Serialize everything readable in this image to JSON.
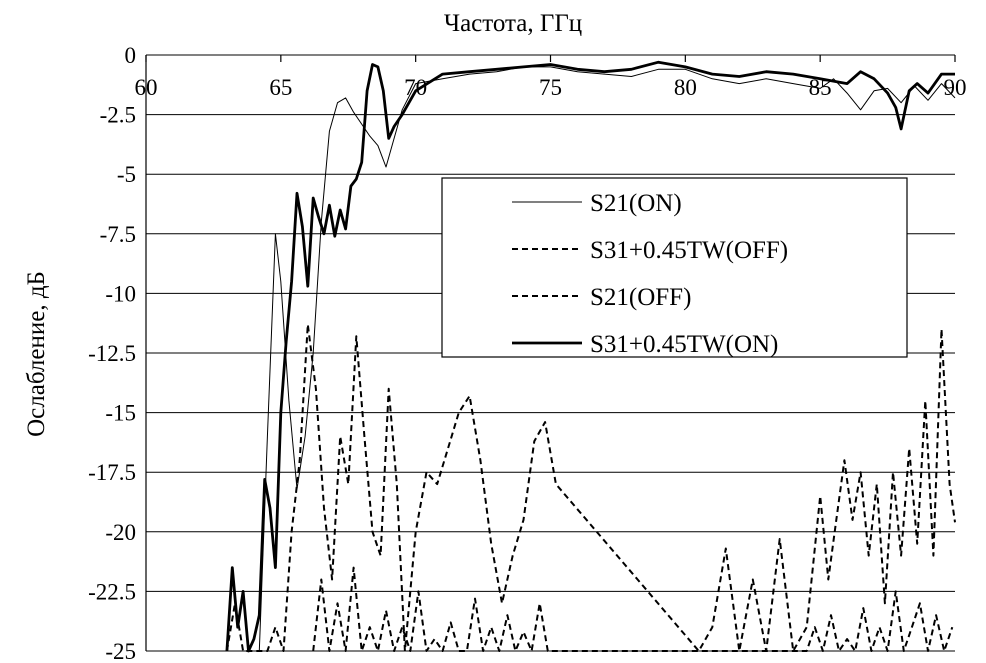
{
  "chart_data": {
    "type": "line",
    "xlabel": "Частота, ГГц",
    "ylabel": "Ослабление, дБ",
    "xlim": [
      60,
      90
    ],
    "ylim": [
      -25,
      0
    ],
    "x_ticks": [
      "60",
      "65",
      "70",
      "75",
      "80",
      "85",
      "90"
    ],
    "y_ticks": [
      "0",
      "-2.5",
      "-5",
      "-7.5",
      "-10",
      "-12.5",
      "-15",
      "-17.5",
      "-20",
      "-22.5",
      "-25"
    ],
    "x_axis_position": "top",
    "grid": "horizontal",
    "legend_position": "center-right",
    "series": [
      {
        "name": "S21(ON)",
        "style": "thin-solid",
        "color": "#000000",
        "x": [
          64.2,
          64.5,
          64.8,
          65.0,
          65.3,
          65.6,
          65.9,
          66.2,
          66.5,
          66.8,
          67.1,
          67.4,
          67.7,
          68.0,
          68.3,
          68.6,
          68.9,
          69.2,
          69.5,
          70.0,
          71.0,
          72.0,
          73.0,
          74.0,
          75.0,
          76.0,
          77.0,
          78.0,
          79.0,
          80.0,
          81.0,
          82.0,
          83.0,
          84.0,
          85.0,
          85.5,
          86.0,
          86.5,
          87.0,
          87.5,
          88.0,
          88.5,
          89.0,
          89.5,
          90.0
        ],
        "y": [
          -25,
          -16,
          -7.5,
          -9.5,
          -14.5,
          -18.2,
          -16,
          -12.5,
          -7,
          -3.2,
          -2.0,
          -1.8,
          -2.4,
          -2.9,
          -3.4,
          -3.8,
          -4.7,
          -3.5,
          -2.3,
          -1.2,
          -1.0,
          -0.8,
          -0.7,
          -0.5,
          -0.5,
          -0.7,
          -0.8,
          -0.9,
          -0.6,
          -0.6,
          -1.0,
          -1.2,
          -1.0,
          -1.2,
          -1.4,
          -1.0,
          -1.6,
          -2.3,
          -1.5,
          -1.4,
          -2.0,
          -1.3,
          -1.9,
          -1.2,
          -1.8
        ]
      },
      {
        "name": "S31+0.45TW(OFF)",
        "style": "dashed",
        "color": "#000000",
        "x": [
          63.0,
          63.3,
          63.6,
          63.9,
          64.2,
          64.5,
          64.8,
          65.1,
          65.4,
          65.7,
          66.0,
          66.3,
          66.6,
          66.9,
          67.2,
          67.5,
          67.8,
          68.1,
          68.4,
          68.7,
          69.0,
          69.3,
          69.6,
          70.0,
          70.4,
          70.8,
          71.2,
          71.6,
          72.0,
          72.4,
          72.8,
          73.2,
          73.6,
          74.0,
          74.4,
          74.8,
          75.2,
          80.5,
          81.0,
          81.5,
          82.0,
          82.5,
          83.0,
          83.5,
          84.0,
          84.5,
          85.0,
          85.3,
          85.6,
          85.9,
          86.2,
          86.5,
          86.8,
          87.1,
          87.4,
          87.7,
          88.0,
          88.3,
          88.6,
          88.9,
          89.2,
          89.5,
          89.8,
          90.0
        ],
        "y": [
          -25,
          -23,
          -25,
          -25,
          -25,
          -25,
          -24,
          -25,
          -20,
          -17,
          -11.3,
          -14,
          -19,
          -22,
          -16,
          -18,
          -11.8,
          -16,
          -20,
          -21,
          -14,
          -18,
          -25,
          -20,
          -17.5,
          -18,
          -16.5,
          -15,
          -14.3,
          -17,
          -20.5,
          -23,
          -21,
          -19.5,
          -16.2,
          -15.4,
          -18,
          -25,
          -24,
          -20.7,
          -25,
          -22,
          -25,
          -20.3,
          -25,
          -24,
          -18.5,
          -22,
          -19.5,
          -17,
          -19.5,
          -17.5,
          -21,
          -18,
          -23,
          -17.5,
          -21,
          -16.5,
          -20.5,
          -14.5,
          -21,
          -11.5,
          -18,
          -19.6
        ]
      },
      {
        "name": "S21(OFF)",
        "style": "dashed",
        "color": "#000000",
        "x": [
          66.2,
          66.5,
          66.8,
          67.1,
          67.4,
          67.7,
          68.0,
          68.3,
          68.6,
          68.9,
          69.2,
          69.5,
          69.8,
          70.1,
          70.4,
          70.7,
          71.0,
          71.3,
          71.6,
          71.9,
          72.2,
          72.5,
          72.8,
          73.1,
          73.4,
          73.7,
          74.0,
          74.3,
          74.6,
          74.9,
          75.2,
          84.5,
          84.8,
          85.1,
          85.4,
          85.7,
          86.0,
          86.3,
          86.6,
          86.9,
          87.2,
          87.5,
          87.8,
          88.1,
          88.4,
          88.7,
          89.0,
          89.3,
          89.6,
          89.9
        ],
        "y": [
          -25,
          -22,
          -25,
          -23,
          -25,
          -21.5,
          -25,
          -24,
          -25,
          -23.3,
          -25,
          -24,
          -25,
          -22.5,
          -25,
          -24.5,
          -25,
          -23.8,
          -25,
          -25,
          -22.8,
          -25,
          -24,
          -25,
          -23.5,
          -25,
          -24.2,
          -25,
          -23,
          -25,
          -25,
          -25,
          -24,
          -25,
          -23.5,
          -25,
          -24.5,
          -25,
          -23.2,
          -25,
          -24,
          -25,
          -22.5,
          -25,
          -24,
          -23,
          -25,
          -23.5,
          -25,
          -24
        ]
      },
      {
        "name": "S31+0.45TW(ON)",
        "style": "thick-solid",
        "color": "#000000",
        "x": [
          63.0,
          63.2,
          63.4,
          63.6,
          63.8,
          64.0,
          64.2,
          64.4,
          64.6,
          64.8,
          65.0,
          65.2,
          65.4,
          65.6,
          65.8,
          66.0,
          66.2,
          66.4,
          66.6,
          66.8,
          67.0,
          67.2,
          67.4,
          67.6,
          67.8,
          68.0,
          68.2,
          68.4,
          68.6,
          68.8,
          69.0,
          69.2,
          69.5,
          70.0,
          71.0,
          72.0,
          73.0,
          74.0,
          75.0,
          76.0,
          77.0,
          78.0,
          79.0,
          80.0,
          81.0,
          82.0,
          83.0,
          84.0,
          85.0,
          86.0,
          86.5,
          87.0,
          87.5,
          87.8,
          88.0,
          88.3,
          88.6,
          89.0,
          89.5,
          90.0
        ],
        "y": [
          -25,
          -21.5,
          -24,
          -22.5,
          -25,
          -24.5,
          -23.5,
          -17.8,
          -19,
          -21.5,
          -15,
          -12,
          -9.5,
          -5.8,
          -7.2,
          -9.7,
          -6,
          -6.8,
          -7.5,
          -6.3,
          -7.6,
          -6.5,
          -7.3,
          -5.5,
          -5.2,
          -4.5,
          -1.5,
          -0.4,
          -0.5,
          -1.5,
          -3.5,
          -3.0,
          -2.5,
          -1.5,
          -0.8,
          -0.7,
          -0.6,
          -0.5,
          -0.4,
          -0.6,
          -0.7,
          -0.6,
          -0.3,
          -0.5,
          -0.8,
          -0.9,
          -0.7,
          -0.8,
          -1.0,
          -1.2,
          -0.7,
          -1.0,
          -1.6,
          -2.2,
          -3.1,
          -1.5,
          -1.2,
          -1.6,
          -0.8,
          -0.8
        ]
      }
    ]
  }
}
